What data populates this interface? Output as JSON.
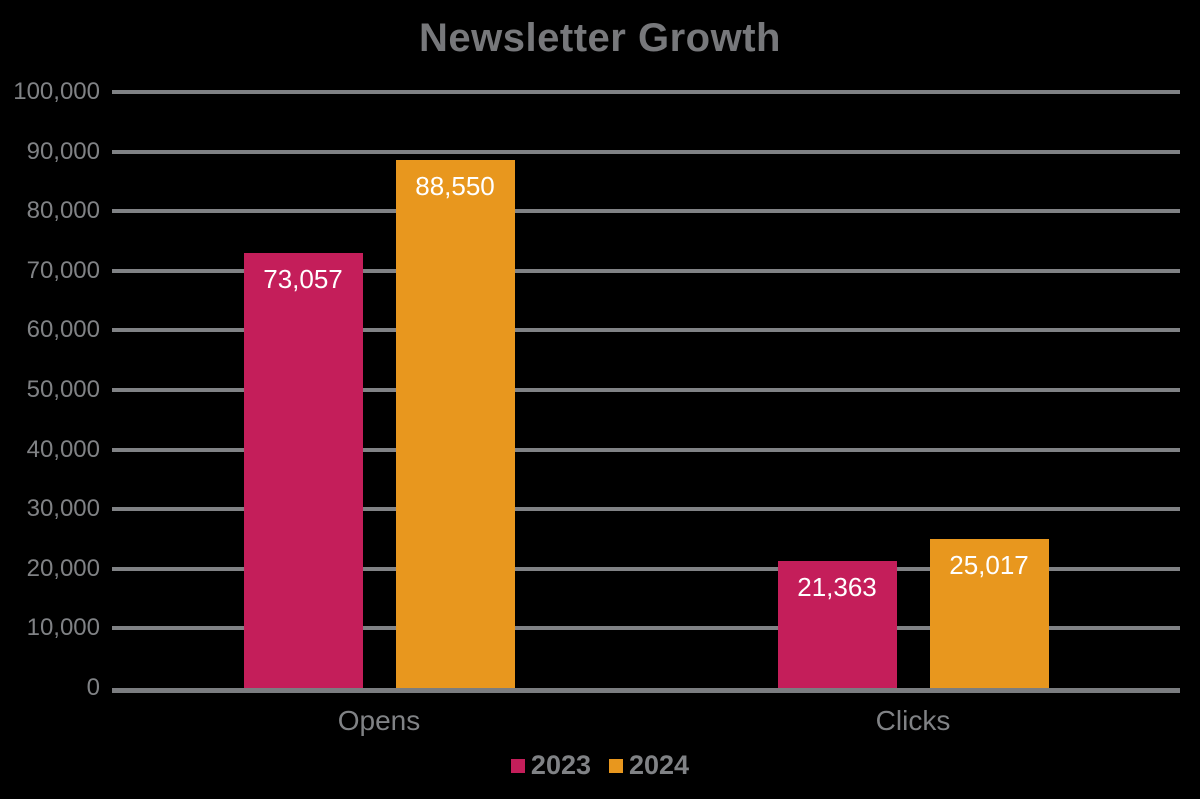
{
  "chart_data": {
    "type": "bar",
    "title": "Newsletter Growth",
    "categories": [
      "Opens",
      "Clicks"
    ],
    "series": [
      {
        "name": "2023",
        "color": "#C41E5A",
        "values": [
          73057,
          21363
        ],
        "value_labels": [
          "73,057",
          "21,363"
        ]
      },
      {
        "name": "2024",
        "color": "#E8971E",
        "values": [
          88550,
          25017
        ],
        "value_labels": [
          "88,550",
          "25,017"
        ]
      }
    ],
    "ylim": [
      0,
      100000
    ],
    "ytick_step": 10000,
    "yticks": [
      {
        "value": 0,
        "label": "0"
      },
      {
        "value": 10000,
        "label": "10,000"
      },
      {
        "value": 20000,
        "label": "20,000"
      },
      {
        "value": 30000,
        "label": "30,000"
      },
      {
        "value": 40000,
        "label": "40,000"
      },
      {
        "value": 50000,
        "label": "50,000"
      },
      {
        "value": 60000,
        "label": "60,000"
      },
      {
        "value": 70000,
        "label": "70,000"
      },
      {
        "value": 80000,
        "label": "80,000"
      },
      {
        "value": 90000,
        "label": "90,000"
      },
      {
        "value": 100000,
        "label": "100,000"
      }
    ],
    "grid": "horizontal gridlines on",
    "legend_position": "bottom-center",
    "value_labels_position": "inside-top",
    "colors": {
      "series_2023": "#C41E5A",
      "series_2024": "#E8971E",
      "gridline": "#808285",
      "axis_text": "#808285",
      "category_text": "#808285",
      "title_text": "#77787B",
      "value_label_text": "#FFFFFF",
      "background": "#000000"
    }
  }
}
